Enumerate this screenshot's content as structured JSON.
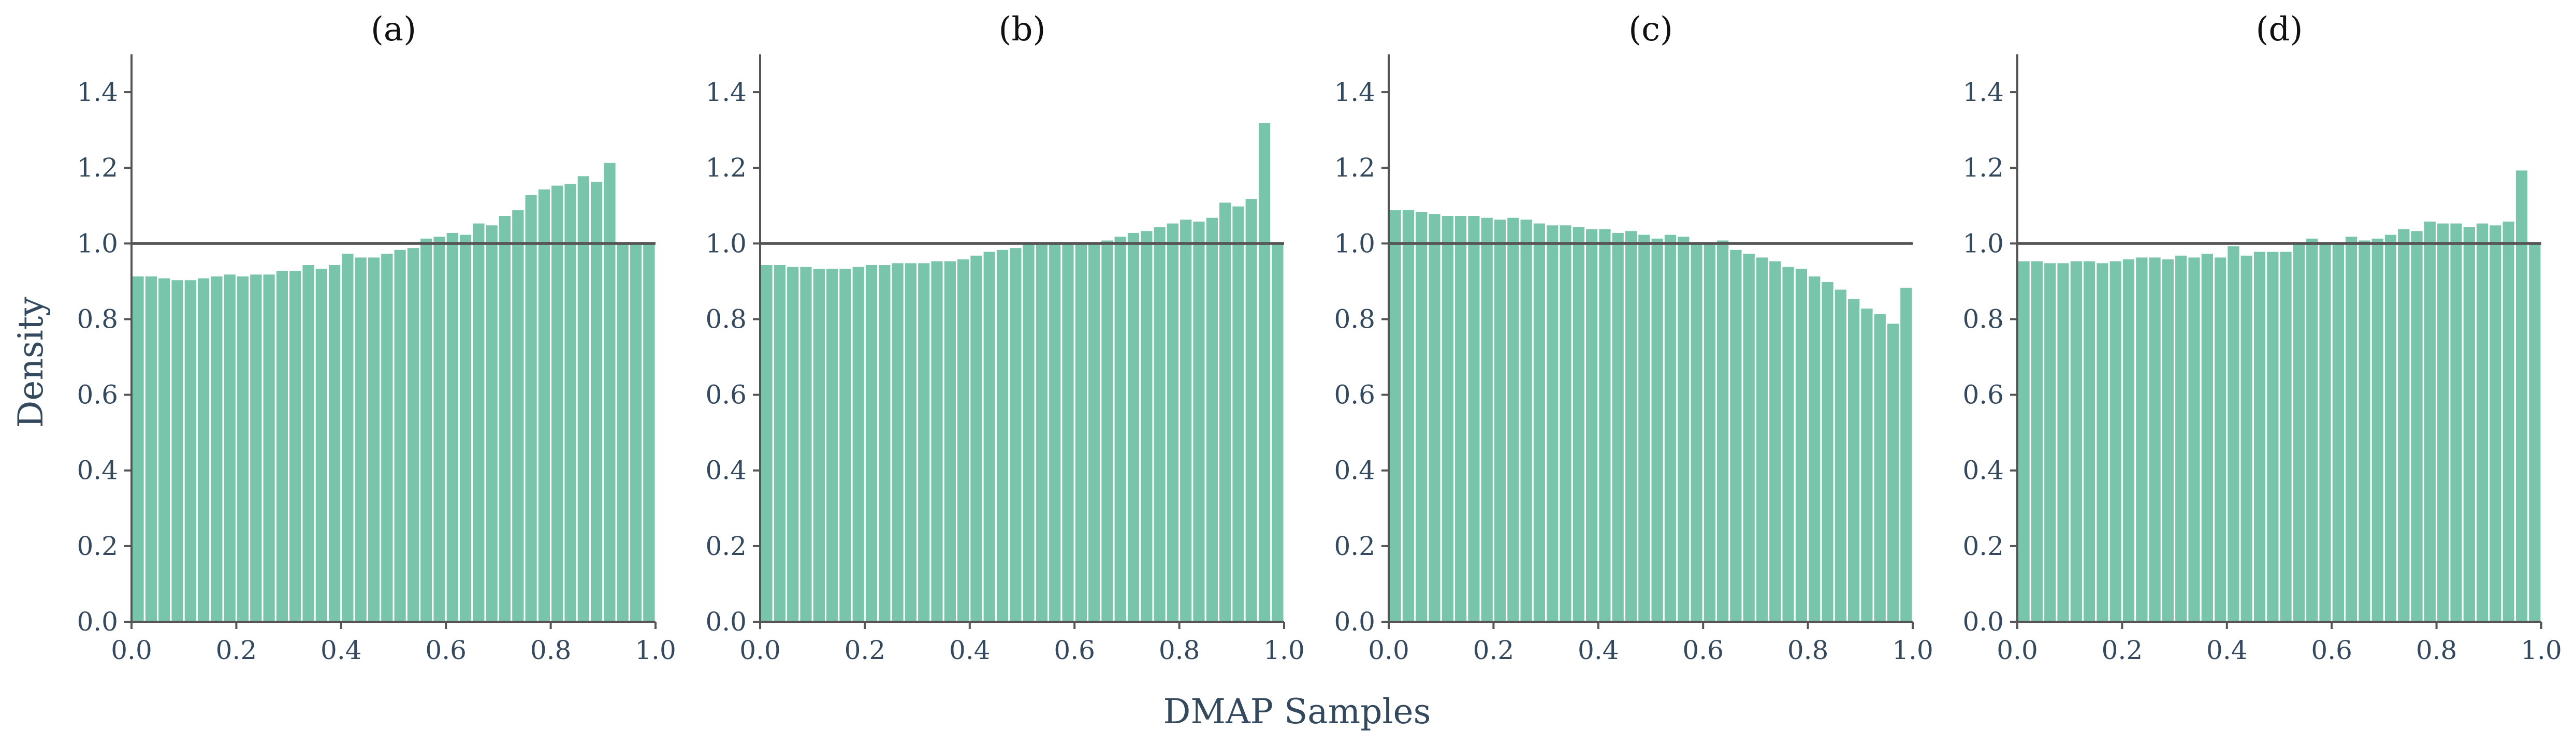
{
  "figure": {
    "xlabel": "DMAP Samples",
    "ylabel": "Density",
    "bar_color": "#78c5ab",
    "axis_color": "#555555",
    "reference_line_color": "#555555"
  },
  "chart_data": [
    {
      "type": "bar",
      "title": "(a)",
      "xlim": [
        0,
        1
      ],
      "ylim": [
        0,
        1.5
      ],
      "xticks": [
        "0.0",
        "0.2",
        "0.4",
        "0.6",
        "0.8",
        "1.0"
      ],
      "yticks": [
        "0.0",
        "0.2",
        "0.4",
        "0.6",
        "0.8",
        "1.0",
        "1.2",
        "1.4"
      ],
      "reference_line": 1.0,
      "bins": 40,
      "values": [
        0.915,
        0.915,
        0.91,
        0.905,
        0.905,
        0.91,
        0.915,
        0.92,
        0.915,
        0.92,
        0.92,
        0.93,
        0.93,
        0.945,
        0.935,
        0.945,
        0.975,
        0.965,
        0.965,
        0.975,
        0.985,
        0.99,
        1.015,
        1.02,
        1.03,
        1.025,
        1.055,
        1.05,
        1.075,
        1.09,
        1.13,
        1.145,
        1.155,
        1.16,
        1.18,
        1.165,
        1.215,
        1.0,
        1.0,
        1.0
      ]
    },
    {
      "type": "bar",
      "title": "(b)",
      "xlim": [
        0,
        1
      ],
      "ylim": [
        0,
        1.5
      ],
      "xticks": [
        "0.0",
        "0.2",
        "0.4",
        "0.6",
        "0.8",
        "1.0"
      ],
      "yticks": [
        "0.0",
        "0.2",
        "0.4",
        "0.6",
        "0.8",
        "1.0",
        "1.2",
        "1.4"
      ],
      "reference_line": 1.0,
      "bins": 40,
      "values": [
        0.945,
        0.945,
        0.94,
        0.94,
        0.935,
        0.935,
        0.935,
        0.94,
        0.945,
        0.945,
        0.95,
        0.95,
        0.95,
        0.955,
        0.955,
        0.96,
        0.97,
        0.98,
        0.985,
        0.99,
        1.0,
        1.0,
        1.0,
        1.005,
        1.005,
        1.005,
        1.01,
        1.02,
        1.03,
        1.035,
        1.045,
        1.055,
        1.065,
        1.06,
        1.07,
        1.11,
        1.1,
        1.12,
        1.32,
        1.0
      ]
    },
    {
      "type": "bar",
      "title": "(c)",
      "xlim": [
        0,
        1
      ],
      "ylim": [
        0,
        1.5
      ],
      "xticks": [
        "0.0",
        "0.2",
        "0.4",
        "0.6",
        "0.8",
        "1.0"
      ],
      "yticks": [
        "0.0",
        "0.2",
        "0.4",
        "0.6",
        "0.8",
        "1.0",
        "1.2",
        "1.4"
      ],
      "reference_line": 1.0,
      "bins": 40,
      "values": [
        1.09,
        1.09,
        1.085,
        1.08,
        1.075,
        1.075,
        1.075,
        1.07,
        1.065,
        1.07,
        1.065,
        1.055,
        1.05,
        1.05,
        1.045,
        1.04,
        1.04,
        1.03,
        1.035,
        1.025,
        1.015,
        1.025,
        1.02,
        1.005,
        1.005,
        1.01,
        0.985,
        0.975,
        0.965,
        0.955,
        0.94,
        0.935,
        0.915,
        0.9,
        0.88,
        0.855,
        0.83,
        0.815,
        0.79,
        0.885
      ]
    },
    {
      "type": "bar",
      "title": "(d)",
      "xlim": [
        0,
        1
      ],
      "ylim": [
        0,
        1.5
      ],
      "xticks": [
        "0.0",
        "0.2",
        "0.4",
        "0.6",
        "0.8",
        "1.0"
      ],
      "yticks": [
        "0.0",
        "0.2",
        "0.4",
        "0.6",
        "0.8",
        "1.0",
        "1.2",
        "1.4"
      ],
      "reference_line": 1.0,
      "bins": 40,
      "values": [
        0.955,
        0.955,
        0.95,
        0.95,
        0.955,
        0.955,
        0.95,
        0.955,
        0.96,
        0.965,
        0.965,
        0.96,
        0.97,
        0.965,
        0.975,
        0.965,
        0.995,
        0.97,
        0.98,
        0.98,
        0.98,
        1.005,
        1.015,
        1.005,
        1.005,
        1.02,
        1.01,
        1.015,
        1.025,
        1.04,
        1.035,
        1.06,
        1.055,
        1.055,
        1.045,
        1.055,
        1.05,
        1.06,
        1.195,
        1.0
      ]
    }
  ]
}
